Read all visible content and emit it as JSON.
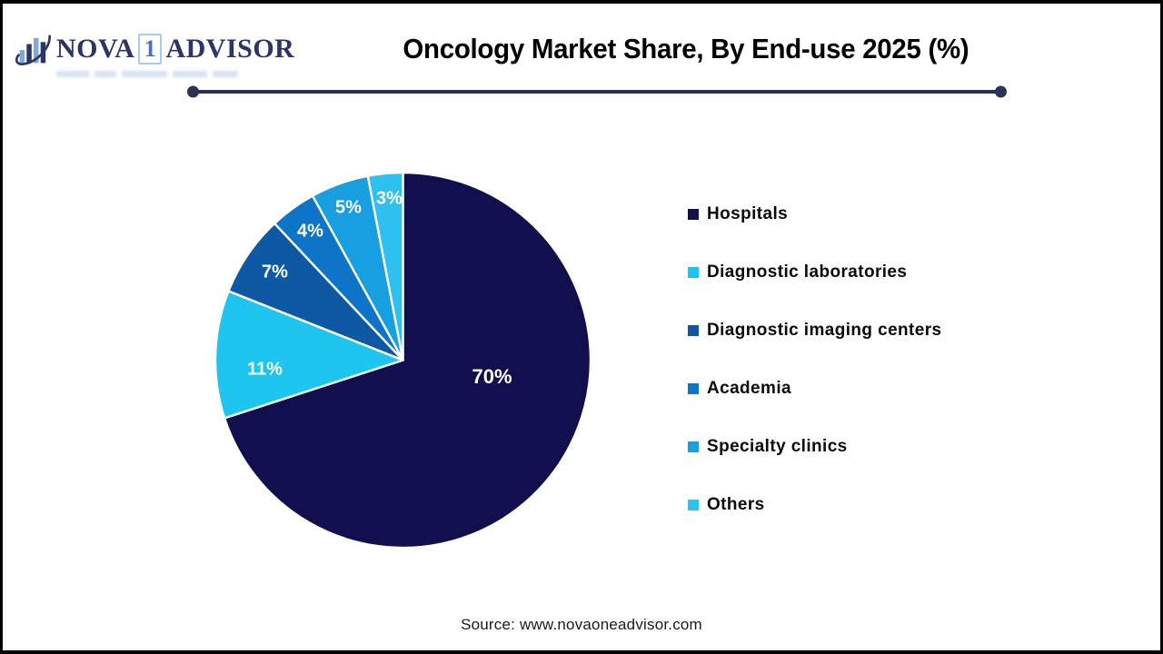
{
  "logo": {
    "name_part1": "NOVA",
    "name_part2": "1",
    "name_part3": "ADVISOR"
  },
  "header": {
    "title": "Oncology Market Share, By End-use 2025 (%)"
  },
  "chart_data": {
    "type": "pie",
    "title": "Oncology Market Share, By End-use 2025 (%)",
    "unit": "%",
    "direction": "clockwise",
    "start_angle_deg": 0,
    "legend_position": "right",
    "categories": [
      "Hospitals",
      "Diagnostic laboratories",
      "Diagnostic imaging centers",
      "Academia",
      "Specialty clinics",
      "Others"
    ],
    "values": [
      70,
      11,
      7,
      4,
      5,
      3
    ],
    "data_labels": [
      "70%",
      "11%",
      "7%",
      "4%",
      "5%",
      "3%"
    ],
    "colors": [
      "#110F4E",
      "#1EC6EF",
      "#0E59A4",
      "#0D74C7",
      "#189FE0",
      "#2EC1F0"
    ],
    "slice_border_color": "#ffffff"
  },
  "footer": {
    "source_text": "Source: www.novaoneadvisor.com"
  }
}
